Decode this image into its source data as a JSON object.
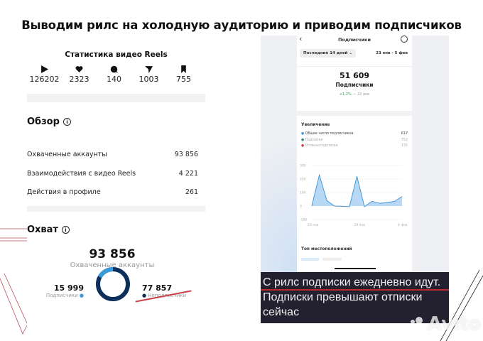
{
  "headline": "Выводим рилс на холодную аудиторию и приводим подписчиков",
  "reels_stats": {
    "title": "Статистика видео Reels",
    "counters": [
      {
        "icon": "play-icon",
        "value": "126202"
      },
      {
        "icon": "heart-icon",
        "value": "2323"
      },
      {
        "icon": "comment-icon",
        "value": "140"
      },
      {
        "icon": "share-icon",
        "value": "1003"
      },
      {
        "icon": "bookmark-icon",
        "value": "755"
      }
    ],
    "overview": {
      "title": "Обзор",
      "rows": [
        {
          "label": "Охваченные аккаунты",
          "value": "93 856"
        },
        {
          "label": "Взаимодействия с видео Reels",
          "value": "4 221"
        },
        {
          "label": "Действия в профиле",
          "value": "261"
        }
      ]
    },
    "reach": {
      "title": "Охват",
      "total": "93 856",
      "total_label": "Охваченные аккаунты",
      "followers": "15 999",
      "followers_label": "Подписчики",
      "non_followers": "77 857",
      "non_followers_label": "Неподписчики",
      "followers_color": "#3a9ad9",
      "non_followers_color": "#0d2f5c"
    }
  },
  "subscribers": {
    "title": "Подписчики",
    "period": "Последние 14 дней",
    "range": "23 янв - 5 фев",
    "count": "51 609",
    "count_label": "Подписчики",
    "change": "+1,2%",
    "change_suffix": "— 22 янв",
    "growth_title": "Увеличение",
    "legend": [
      {
        "label": "Общее число подписчиков",
        "value": "617",
        "color": "#3a9ad9"
      },
      {
        "label": "Подписки",
        "value": "752",
        "color": "#2a8f8a"
      },
      {
        "label": "Отмены подписки",
        "value": "135",
        "color": "#d04050"
      }
    ],
    "chart": {
      "type": "area",
      "y_ticks": [
        "300",
        "200",
        "100",
        "0",
        "-100"
      ],
      "ylim": [
        -100,
        300
      ],
      "x_ticks": [
        "23 янв",
        "29 янв",
        "4 фев"
      ],
      "values": [
        0,
        230,
        40,
        0,
        -2,
        -5,
        220,
        -5,
        35,
        20,
        25,
        35,
        70
      ],
      "color": "#3a8fd0"
    },
    "top_locations": "Топ местоположений"
  },
  "caption": {
    "line1": "С рилс подписки ежедневно идут.",
    "line2": "Подписки превышают отписки",
    "line3": "сейчас"
  },
  "watermark": "Avito"
}
